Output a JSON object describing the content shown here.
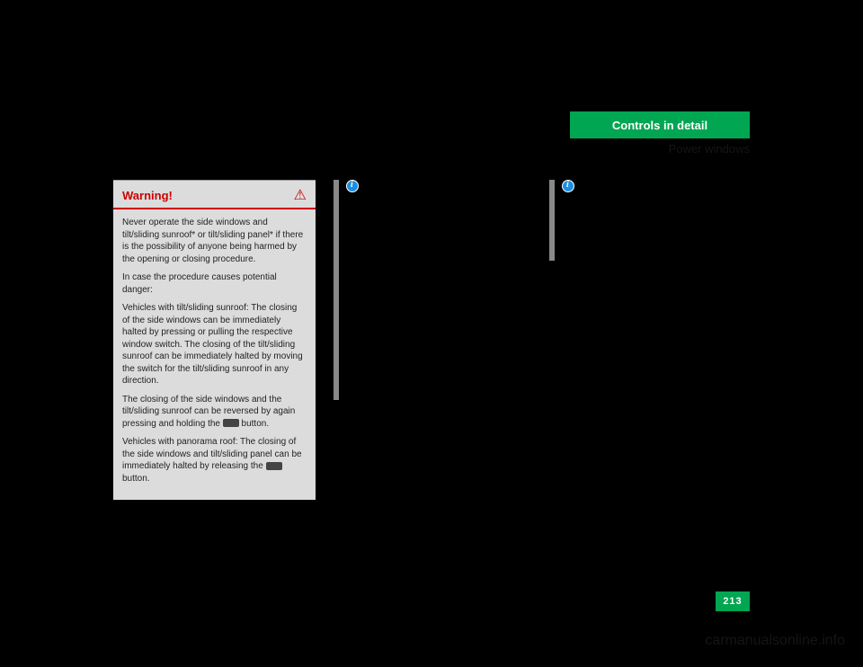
{
  "header": {
    "title": "Controls in detail",
    "subtitle": "Power windows",
    "header_bg": "#00a651",
    "header_text_color": "#ffffff"
  },
  "warning": {
    "title": "Warning!",
    "title_color": "#cc0000",
    "box_bg": "#dcdcdc",
    "border_color": "#cc0000",
    "paragraphs": [
      "Never operate the side windows and tilt/sliding sunroof* or tilt/sliding panel* if there is the possibility of anyone being harmed by the opening or closing procedure.",
      "In case the procedure causes potential danger:",
      "Vehicles with tilt/sliding sunroof: The closing of the side windows can be immediately halted by pressing or pulling the respective window switch. The closing of the tilt/sliding sunroof can be immediately halted by moving the switch for the tilt/sliding sunroof in any direction.",
      "The closing of the side windows and the tilt/sliding sunroof can be reversed by again pressing and holding the ",
      "Vehicles with panorama roof: The closing of the side windows and tilt/sliding panel can be immediately halted by releasing the ",
      "button."
    ],
    "button_suffix": " button."
  },
  "col2": {
    "bar_color": "#888888",
    "info_icon_bg": "#1d8fe0"
  },
  "col3": {
    "bar_color": "#888888",
    "info_icon_bg": "#1d8fe0"
  },
  "page_number": "213",
  "page_number_bg": "#00a651",
  "watermark": "carmanualsonline.info"
}
